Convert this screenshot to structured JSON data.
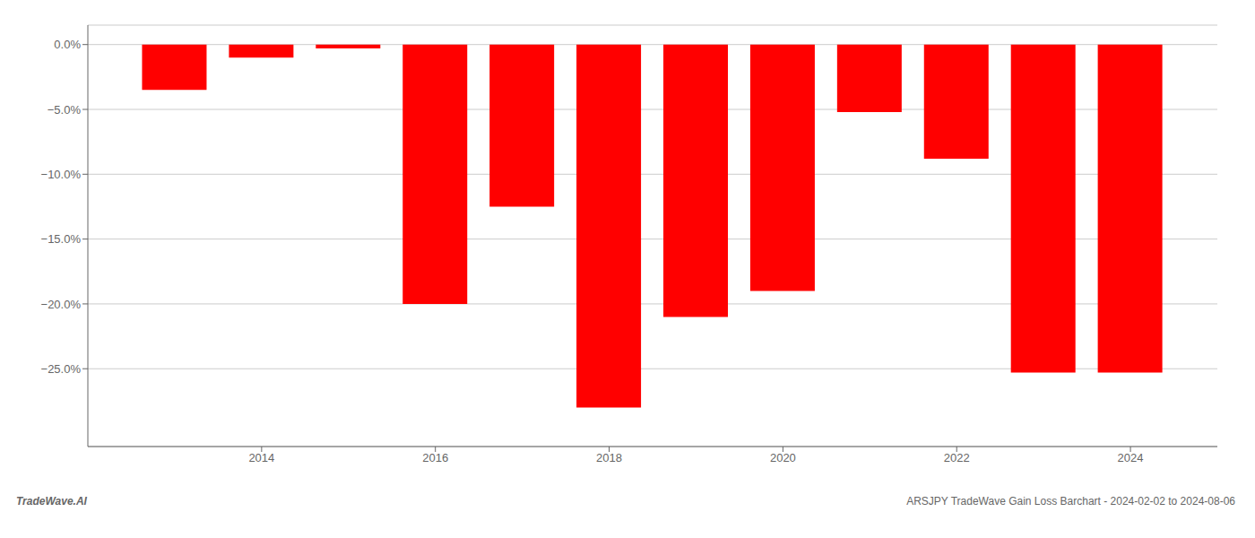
{
  "chart_data": {
    "type": "bar",
    "x": [
      2013,
      2014,
      2015,
      2016,
      2017,
      2018,
      2019,
      2020,
      2021,
      2022,
      2023,
      2024
    ],
    "values": [
      -3.5,
      -1.0,
      -0.3,
      -20.0,
      -12.5,
      -28.0,
      -21.0,
      -19.0,
      -5.2,
      -8.8,
      -25.3,
      -25.3
    ],
    "color": "#ff0000",
    "xlim": [
      2012,
      2025
    ],
    "xticks": [
      2014,
      2016,
      2018,
      2020,
      2022,
      2024
    ],
    "ylim": [
      -31,
      1.5
    ],
    "yticks": [
      {
        "value": 0.0,
        "label": "0.0%"
      },
      {
        "value": -5.0,
        "label": "−5.0%"
      },
      {
        "value": -10.0,
        "label": "−10.0%"
      },
      {
        "value": -15.0,
        "label": "−15.0%"
      },
      {
        "value": -20.0,
        "label": "−20.0%"
      },
      {
        "value": -25.0,
        "label": "−25.0%"
      }
    ],
    "grid": true,
    "annotations": [
      "TradeWave.AI",
      "ARSJPY TradeWave Gain Loss Barchart - 2024-02-02 to 2024-08-06"
    ]
  }
}
